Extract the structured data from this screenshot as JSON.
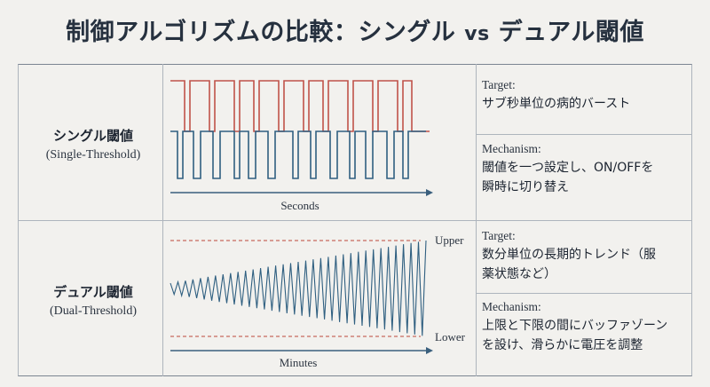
{
  "title": {
    "main": "制御アルゴリズムの比較：シングル",
    "vs": "vs",
    "tail": "デュアル閾値"
  },
  "rows": [
    {
      "name_jp": "シングル閾値",
      "name_en": "(Single-Threshold)",
      "axis_label": "Seconds",
      "target_label": "Target:",
      "target_text": "サブ秒単位の病的バースト",
      "mechanism_label": "Mechanism:",
      "mechanism_lines": [
        "閾値を一つ設定し、ON/OFFを",
        "瞬時に切り替え"
      ]
    },
    {
      "name_jp": "デュアル閾値",
      "name_en": "(Dual-Threshold)",
      "axis_label": "Minutes",
      "upper_label": "Upper",
      "lower_label": "Lower",
      "target_label": "Target:",
      "target_lines": [
        "数分単位の長期的トレンド（服",
        "薬状態など）"
      ],
      "mechanism_label": "Mechanism:",
      "mechanism_lines": [
        "上限と下限の間にバッファゾーン",
        "を設け、滑らかに電圧を調整"
      ]
    }
  ],
  "colors": {
    "red": "#c0524a",
    "blue": "#2f5f80",
    "axis": "#3a5f7d",
    "dash": "#c76a5f"
  }
}
